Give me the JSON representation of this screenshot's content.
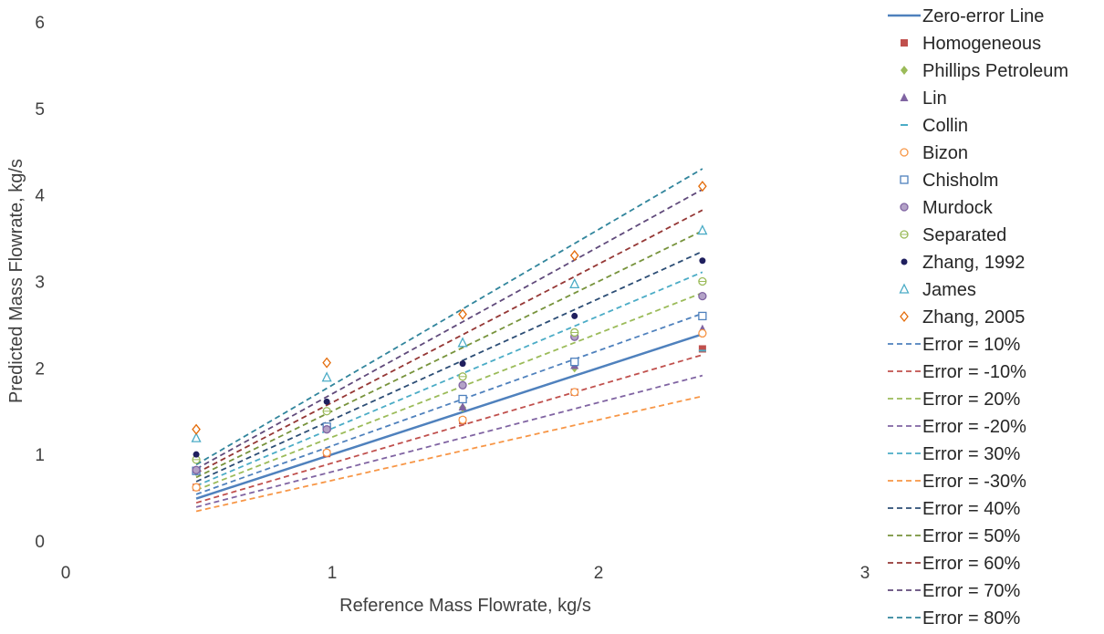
{
  "chart_data": {
    "type": "scatter",
    "title": "",
    "xlabel": "Reference Mass Flowrate, kg/s",
    "ylabel": "Predicted Mass Flowrate, kg/s",
    "xlim": [
      0,
      3
    ],
    "ylim": [
      0,
      6
    ],
    "x_ticks": [
      "0",
      "1",
      "2",
      "3"
    ],
    "y_ticks": [
      "0",
      "1",
      "2",
      "3",
      "4",
      "5",
      "6"
    ],
    "grid": false,
    "legend_position": "right",
    "reference_line": {
      "name": "Zero-error Line",
      "color": "#4f81bd",
      "x": [
        0.49,
        2.39
      ],
      "y": [
        0.49,
        2.39
      ]
    },
    "series": [
      {
        "name": "Homogeneous",
        "marker": "square-filled",
        "color": "#c0504d",
        "x": [
          0.49,
          0.98,
          1.49,
          1.91,
          2.39
        ],
        "y": [
          0.62,
          1.01,
          1.39,
          1.72,
          2.22
        ]
      },
      {
        "name": "Phillips Petroleum",
        "marker": "diamond-filled",
        "color": "#9bbb59",
        "x": [
          0.49,
          0.98,
          1.49,
          1.91,
          2.39
        ],
        "y": [
          0.8,
          1.32,
          1.54,
          2.0,
          2.42
        ]
      },
      {
        "name": "Lin",
        "marker": "triangle-filled",
        "color": "#8064a2",
        "x": [
          0.49,
          0.98,
          1.49,
          1.91,
          2.39
        ],
        "y": [
          0.82,
          1.32,
          1.55,
          2.03,
          2.45
        ]
      },
      {
        "name": "Collin",
        "marker": "dash",
        "color": "#4bacc6",
        "x": [
          0.49,
          0.98,
          1.49,
          1.91,
          2.39
        ],
        "y": [
          0.6,
          1.0,
          1.4,
          1.7,
          2.2
        ]
      },
      {
        "name": "Bizon",
        "marker": "circle-open",
        "color": "#f79646",
        "x": [
          0.49,
          0.98,
          1.49,
          1.91,
          2.39
        ],
        "y": [
          0.62,
          1.02,
          1.4,
          1.72,
          2.4
        ]
      },
      {
        "name": "Chisholm",
        "marker": "square-open",
        "color": "#4f81bd",
        "x": [
          0.49,
          0.98,
          1.49,
          1.91,
          2.39
        ],
        "y": [
          0.81,
          1.32,
          1.64,
          2.07,
          2.6
        ]
      },
      {
        "name": "Murdock",
        "marker": "circle-grey",
        "color": "#8064a2",
        "x": [
          0.49,
          0.98,
          1.49,
          1.91,
          2.39
        ],
        "y": [
          0.82,
          1.29,
          1.8,
          2.36,
          2.83
        ]
      },
      {
        "name": "Separated",
        "marker": "circle-open-line",
        "color": "#9bbb59",
        "x": [
          0.49,
          0.98,
          1.49,
          1.91,
          2.39
        ],
        "y": [
          0.94,
          1.5,
          1.9,
          2.41,
          3.0
        ]
      },
      {
        "name": "Zhang, 1992",
        "marker": "circle-filled",
        "color": "#1f1f5e",
        "x": [
          0.49,
          0.98,
          1.49,
          1.91,
          2.39
        ],
        "y": [
          1.0,
          1.61,
          2.05,
          2.6,
          3.24
        ]
      },
      {
        "name": "James",
        "marker": "triangle-open",
        "color": "#4bacc6",
        "x": [
          0.49,
          0.98,
          1.49,
          1.91,
          2.39
        ],
        "y": [
          1.19,
          1.89,
          2.29,
          2.97,
          3.59
        ]
      },
      {
        "name": "Zhang, 2005",
        "marker": "diamond-open",
        "color": "#e46c0a",
        "x": [
          0.49,
          0.98,
          1.49,
          1.91,
          2.39
        ],
        "y": [
          1.29,
          2.06,
          2.62,
          3.3,
          4.1
        ]
      }
    ],
    "error_lines": [
      {
        "name": "Error = 10%",
        "factor": 1.1,
        "color": "#4f81bd"
      },
      {
        "name": "Error = -10%",
        "factor": 0.9,
        "color": "#c0504d"
      },
      {
        "name": "Error = 20%",
        "factor": 1.2,
        "color": "#9bbb59"
      },
      {
        "name": "Error = -20%",
        "factor": 0.8,
        "color": "#8064a2"
      },
      {
        "name": "Error = 30%",
        "factor": 1.3,
        "color": "#4bacc6"
      },
      {
        "name": "Error = -30%",
        "factor": 0.7,
        "color": "#f79646"
      },
      {
        "name": "Error = 40%",
        "factor": 1.4,
        "color": "#2c4d75"
      },
      {
        "name": "Error = 50%",
        "factor": 1.5,
        "color": "#77933c"
      },
      {
        "name": "Error = 60%",
        "factor": 1.6,
        "color": "#953735"
      },
      {
        "name": "Error = 70%",
        "factor": 1.7,
        "color": "#604a7b"
      },
      {
        "name": "Error = 80%",
        "factor": 1.8,
        "color": "#31859c"
      }
    ]
  }
}
